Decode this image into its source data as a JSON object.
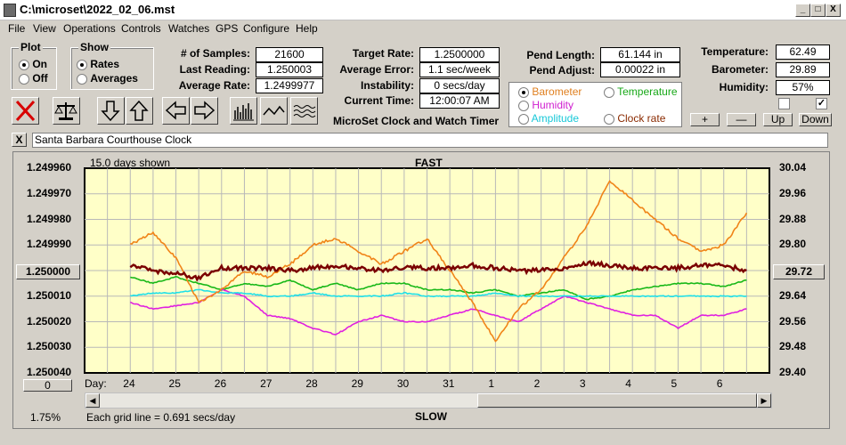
{
  "window": {
    "title": "C:\\microset\\2022_02_06.mst",
    "min": "_",
    "max": "□",
    "close": "X"
  },
  "menu": [
    "File",
    "View",
    "Operations",
    "Controls",
    "Watches",
    "GPS",
    "Configure",
    "Help"
  ],
  "plot_group": {
    "title": "Plot",
    "on": "On",
    "off": "Off",
    "selected": "On"
  },
  "show_group": {
    "title": "Show",
    "rates": "Rates",
    "averages": "Averages",
    "selected": "Rates"
  },
  "stats": {
    "samples_label": "# of Samples:",
    "samples": "21600",
    "last_label": "Last Reading:",
    "last": "1.250003",
    "avg_rate_label": "Average Rate:",
    "avg_rate": "1.2499977",
    "target_label": "Target Rate:",
    "target": "1.2500000",
    "avg_err_label": "Average Error:",
    "avg_err": "1.1 sec/week",
    "instab_label": "Instability:",
    "instab": "0 secs/day",
    "time_label": "Current Time:",
    "time": "12:00:07 AM",
    "pend_len_label": "Pend Length:",
    "pend_len": "61.144 in",
    "pend_adj_label": "Pend Adjust:",
    "pend_adj": "0.00022 in",
    "temp_label": "Temperature:",
    "temp": "62.49",
    "baro_label": "Barometer:",
    "baro": "29.89",
    "hum_label": "Humidity:",
    "hum": "57%"
  },
  "app_caption": "MicroSet Clock and Watch Timer",
  "series_select": {
    "barometer": "Barometer",
    "temperature": "Temperature",
    "humidity": "Humidity",
    "amplitude": "Amplitude",
    "clock_rate": "Clock rate",
    "selected": "Barometer"
  },
  "adjust_buttons": {
    "plus": "+",
    "minus": "—",
    "up": "Up",
    "down": "Down"
  },
  "clock_name": {
    "close": "X",
    "value": "Santa Barbara Courthouse Clock"
  },
  "plot": {
    "days_shown": "15.0 days shown",
    "top_label": "FAST",
    "bottom_label": "SLOW",
    "left_button": "1.250000",
    "right_button": "29.72",
    "zero_button": "0",
    "zoom": "1.75%",
    "grid_note": "Each grid line = 0.691 secs/day",
    "day_prefix": "Day:",
    "left_ticks": [
      "1.249960",
      "1.249970",
      "1.249980",
      "1.249990",
      "1.250000",
      "1.250010",
      "1.250020",
      "1.250030",
      "1.250040"
    ],
    "right_ticks": [
      "30.04",
      "29.96",
      "29.88",
      "29.80",
      "29.72",
      "29.64",
      "29.56",
      "29.48",
      "29.40"
    ],
    "days": [
      "24",
      "25",
      "26",
      "27",
      "28",
      "29",
      "30",
      "31",
      "1",
      "2",
      "3",
      "4",
      "5",
      "6"
    ]
  },
  "colors": {
    "plot_bg": "#ffffc8",
    "rate": "#7a0000",
    "barometer": "#f08418",
    "temperature": "#18b818",
    "humidity": "#e020e0",
    "amplitude": "#20e0e8"
  },
  "chart_data": {
    "type": "line",
    "x": [
      24,
      24.5,
      25,
      25.5,
      26,
      26.5,
      27,
      27.5,
      28,
      28.5,
      29,
      29.5,
      30,
      30.5,
      31,
      31.5,
      32,
      32.5,
      33,
      33.5,
      34,
      34.5,
      35,
      35.5,
      36,
      36.5,
      37,
      37.5
    ],
    "xticks": [
      "24",
      "25",
      "26",
      "27",
      "28",
      "29",
      "30",
      "31",
      "1",
      "2",
      "3",
      "4",
      "5",
      "6"
    ],
    "ylim": [
      1.24996,
      1.25004
    ],
    "y2lim": [
      29.4,
      30.04
    ],
    "series": [
      {
        "name": "Clock rate",
        "axis": "left",
        "values": [
          1.249998,
          1.25,
          1.250001,
          1.250003,
          1.249999,
          1.249999,
          1.249999,
          1.25,
          1.249999,
          1.249998,
          1.249999,
          1.25,
          1.249999,
          1.249999,
          1.249999,
          1.249998,
          1.249999,
          1.25,
          1.25,
          1.249999,
          1.249997,
          1.249998,
          1.249999,
          1.249999,
          1.249999,
          1.249998,
          1.249998,
          1.25
        ]
      },
      {
        "name": "Barometer",
        "axis": "right",
        "values": [
          29.8,
          29.84,
          29.76,
          29.62,
          29.66,
          29.72,
          29.7,
          29.74,
          29.8,
          29.82,
          29.78,
          29.74,
          29.78,
          29.82,
          29.72,
          29.62,
          29.5,
          29.6,
          29.66,
          29.76,
          29.86,
          30.0,
          29.94,
          29.88,
          29.82,
          29.78,
          29.8,
          29.9
        ]
      },
      {
        "name": "Temperature",
        "axis": "right",
        "values": [
          29.7,
          29.68,
          29.7,
          29.68,
          29.66,
          29.68,
          29.67,
          29.69,
          29.66,
          29.68,
          29.66,
          29.68,
          29.68,
          29.66,
          29.66,
          29.65,
          29.66,
          29.64,
          29.65,
          29.66,
          29.63,
          29.64,
          29.66,
          29.67,
          29.68,
          29.68,
          29.67,
          29.69
        ]
      },
      {
        "name": "Humidity",
        "axis": "right",
        "values": [
          29.62,
          29.6,
          29.61,
          29.62,
          29.66,
          29.64,
          29.58,
          29.57,
          29.54,
          29.52,
          29.56,
          29.58,
          29.56,
          29.56,
          29.58,
          29.6,
          29.58,
          29.56,
          29.6,
          29.64,
          29.62,
          29.6,
          29.58,
          29.58,
          29.54,
          29.58,
          29.58,
          29.6
        ]
      },
      {
        "name": "Amplitude",
        "axis": "right",
        "values": [
          29.64,
          29.65,
          29.65,
          29.66,
          29.65,
          29.65,
          29.64,
          29.64,
          29.65,
          29.64,
          29.64,
          29.64,
          29.65,
          29.64,
          29.64,
          29.64,
          29.65,
          29.64,
          29.64,
          29.64,
          29.64,
          29.64,
          29.64,
          29.64,
          29.64,
          29.64,
          29.64,
          29.64
        ]
      }
    ],
    "grid": true
  }
}
